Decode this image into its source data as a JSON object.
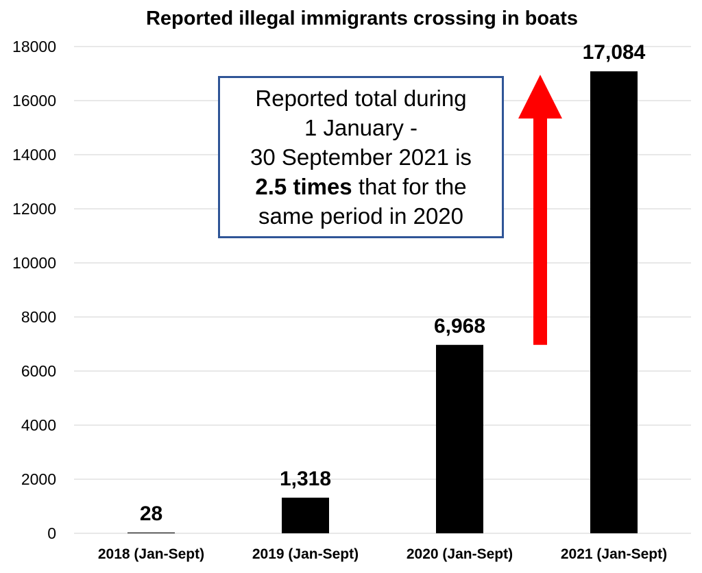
{
  "chart_data": {
    "type": "bar",
    "title": "Reported illegal immigrants crossing in boats",
    "categories": [
      "2018 (Jan-Sept)",
      "2019 (Jan-Sept)",
      "2020 (Jan-Sept)",
      "2021 (Jan-Sept)"
    ],
    "values": [
      28,
      1318,
      6968,
      17084
    ],
    "data_labels": [
      "28",
      "1,318",
      "6,968",
      "17,084"
    ],
    "ylim": [
      0,
      18000
    ],
    "yticks": [
      "0",
      "2000",
      "4000",
      "6000",
      "8000",
      "10000",
      "12000",
      "14000",
      "16000",
      "18000"
    ],
    "grid": true,
    "bar_color": "#000000",
    "annotation": {
      "line1": "Reported total during",
      "line2": "1 January -",
      "line3": "30 September 2021 is",
      "line4_bold": "2.5 times",
      "line4_rest": " that for the",
      "line5": "same period in 2020",
      "border_color": "#2f5597"
    },
    "arrow": {
      "from_value": 6968,
      "to_value": 17084,
      "color": "#ff0000"
    }
  }
}
